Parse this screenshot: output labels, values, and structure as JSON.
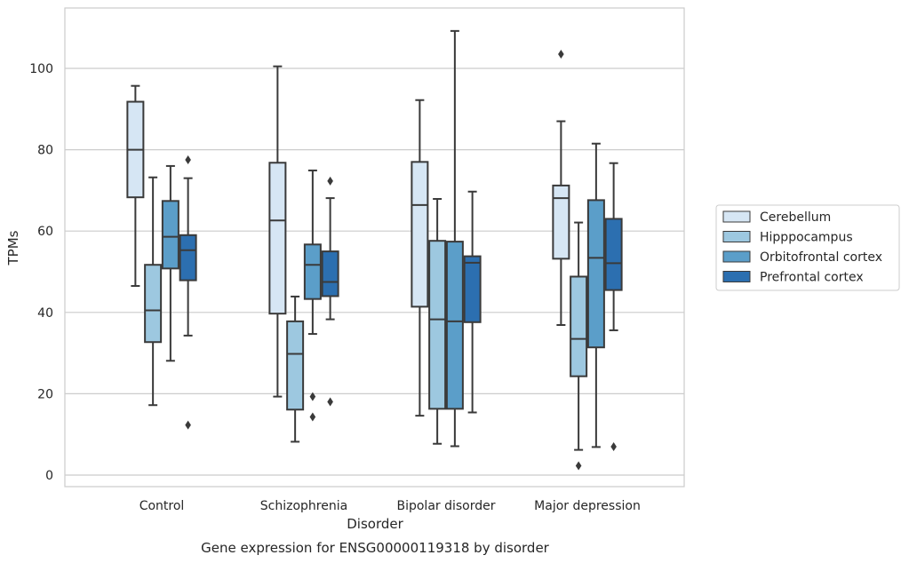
{
  "chart_data": {
    "type": "box",
    "caption": "Gene expression for ENSG00000119318 by disorder",
    "xlabel": "Disorder",
    "ylabel": "TPMs",
    "ylim": [
      -3,
      115
    ],
    "yticks": [
      0,
      20,
      40,
      60,
      80,
      100
    ],
    "grid": "horizontal",
    "legend_position": "right",
    "categories": [
      "Control",
      "Schizophrenia",
      "Bipolar disorder",
      "Major depression"
    ],
    "series": [
      {
        "name": "Cerebellum",
        "color": "#d6e6f4",
        "boxes": [
          {
            "whisker_low": 46.5,
            "q1": 68.3,
            "median": 80.0,
            "q3": 91.8,
            "whisker_high": 95.7,
            "outliers": []
          },
          {
            "whisker_low": 19.3,
            "q1": 39.7,
            "median": 62.6,
            "q3": 76.8,
            "whisker_high": 100.5,
            "outliers": []
          },
          {
            "whisker_low": 14.6,
            "q1": 41.4,
            "median": 66.4,
            "q3": 77.0,
            "whisker_high": 92.2,
            "outliers": []
          },
          {
            "whisker_low": 36.9,
            "q1": 53.2,
            "median": 68.1,
            "q3": 71.2,
            "whisker_high": 87.0,
            "outliers": [
              103.5
            ]
          }
        ]
      },
      {
        "name": "Hipppocampus",
        "color": "#9dc8e0",
        "boxes": [
          {
            "whisker_low": 17.2,
            "q1": 32.7,
            "median": 40.5,
            "q3": 51.7,
            "whisker_high": 73.2,
            "outliers": []
          },
          {
            "whisker_low": 8.2,
            "q1": 16.1,
            "median": 29.8,
            "q3": 37.8,
            "whisker_high": 43.9,
            "outliers": []
          },
          {
            "whisker_low": 7.7,
            "q1": 16.3,
            "median": 38.3,
            "q3": 57.6,
            "whisker_high": 67.9,
            "outliers": []
          },
          {
            "whisker_low": 6.2,
            "q1": 24.3,
            "median": 33.5,
            "q3": 48.8,
            "whisker_high": 62.1,
            "outliers": [
              2.3
            ]
          }
        ]
      },
      {
        "name": "Orbitofrontal cortex",
        "color": "#5b9ec9",
        "boxes": [
          {
            "whisker_low": 28.1,
            "q1": 50.8,
            "median": 58.6,
            "q3": 67.4,
            "whisker_high": 76.0,
            "outliers": []
          },
          {
            "whisker_low": 34.7,
            "q1": 43.3,
            "median": 51.7,
            "q3": 56.7,
            "whisker_high": 74.9,
            "outliers": [
              19.3,
              14.3
            ]
          },
          {
            "whisker_low": 7.1,
            "q1": 16.3,
            "median": 37.8,
            "q3": 57.4,
            "whisker_high": 109.2,
            "outliers": []
          },
          {
            "whisker_low": 6.9,
            "q1": 31.4,
            "median": 53.4,
            "q3": 67.6,
            "whisker_high": 81.5,
            "outliers": []
          }
        ]
      },
      {
        "name": "Prefrontal cortex",
        "color": "#2c6fb0",
        "boxes": [
          {
            "whisker_low": 34.3,
            "q1": 47.9,
            "median": 55.3,
            "q3": 59.0,
            "whisker_high": 73.0,
            "outliers": [
              77.5,
              12.3
            ]
          },
          {
            "whisker_low": 38.3,
            "q1": 44.0,
            "median": 47.5,
            "q3": 55.0,
            "whisker_high": 68.1,
            "outliers": [
              72.3,
              18.0
            ]
          },
          {
            "whisker_low": 15.4,
            "q1": 37.6,
            "median": 52.2,
            "q3": 53.8,
            "whisker_high": 69.7,
            "outliers": []
          },
          {
            "whisker_low": 35.6,
            "q1": 45.5,
            "median": 52.1,
            "q3": 63.0,
            "whisker_high": 76.7,
            "outliers": [
              7.0
            ]
          }
        ]
      }
    ]
  }
}
